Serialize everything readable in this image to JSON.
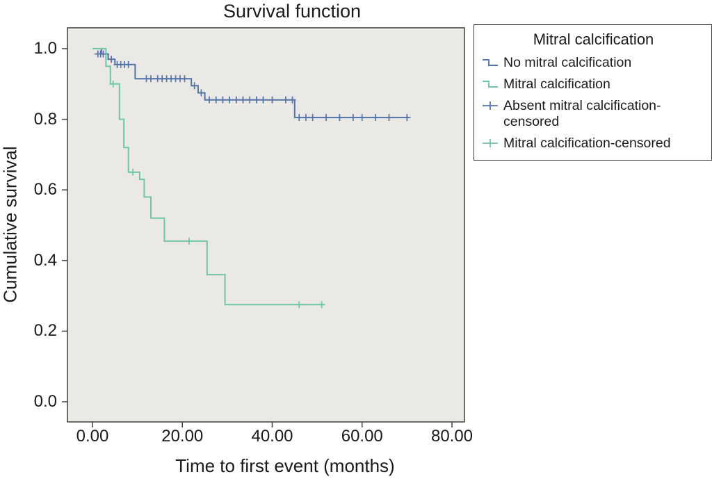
{
  "chart": {
    "title": "Survival function",
    "ylabel": "Cumulative survival",
    "xlabel": "Time to first event (months)"
  },
  "legend": {
    "title": "Mitral calcification",
    "items": [
      {
        "label": "No mitral calcification",
        "symbol": "step-line",
        "color": "#5574a7"
      },
      {
        "label": "Mitral calcification",
        "symbol": "step-line",
        "color": "#70c6a2"
      },
      {
        "label": "Absent mitral calcification-censored",
        "symbol": "censor-plus",
        "color": "#5574a7"
      },
      {
        "label": "Mitral calcification-censored",
        "symbol": "censor-plus",
        "color": "#70c6a2"
      }
    ]
  },
  "chart_data": {
    "type": "line",
    "subtype": "kaplan-meier-step",
    "title": "Survival function",
    "xlabel": "Time to first event (months)",
    "ylabel": "Cumulative survival",
    "xlim": [
      0,
      80
    ],
    "ylim": [
      0,
      1.0
    ],
    "xticks": [
      "0.00",
      "20.00",
      "40.00",
      "60.00",
      "80.00"
    ],
    "yticks": [
      "0.0",
      "0.2",
      "0.4",
      "0.6",
      "0.8",
      "1.0"
    ],
    "grid": false,
    "legend_position": "upper-right",
    "plot_bg": "#eae9e6",
    "series": [
      {
        "name": "No mitral calcification",
        "color": "#5574a7",
        "steps": [
          [
            0,
            1.0
          ],
          [
            2,
            0.985
          ],
          [
            3.5,
            0.97
          ],
          [
            5,
            0.955
          ],
          [
            9.5,
            0.915
          ],
          [
            22,
            0.895
          ],
          [
            23.5,
            0.875
          ],
          [
            25,
            0.855
          ],
          [
            45,
            0.805
          ]
        ],
        "end": 70.5,
        "censored": [
          [
            1.2,
            0.985
          ],
          [
            1.8,
            0.985
          ],
          [
            2.4,
            0.985
          ],
          [
            4.2,
            0.97
          ],
          [
            5.5,
            0.955
          ],
          [
            6.3,
            0.955
          ],
          [
            7.1,
            0.955
          ],
          [
            8,
            0.955
          ],
          [
            12,
            0.915
          ],
          [
            13,
            0.915
          ],
          [
            14.5,
            0.915
          ],
          [
            15.5,
            0.915
          ],
          [
            16.5,
            0.915
          ],
          [
            17.5,
            0.915
          ],
          [
            18.5,
            0.915
          ],
          [
            19.5,
            0.915
          ],
          [
            20.5,
            0.915
          ],
          [
            22.7,
            0.895
          ],
          [
            24.2,
            0.875
          ],
          [
            26,
            0.855
          ],
          [
            27.5,
            0.855
          ],
          [
            29,
            0.855
          ],
          [
            30.5,
            0.855
          ],
          [
            32,
            0.855
          ],
          [
            33.5,
            0.855
          ],
          [
            35,
            0.855
          ],
          [
            36.5,
            0.855
          ],
          [
            38,
            0.855
          ],
          [
            40,
            0.855
          ],
          [
            43,
            0.855
          ],
          [
            44.5,
            0.855
          ],
          [
            46,
            0.805
          ],
          [
            47.5,
            0.805
          ],
          [
            49,
            0.805
          ],
          [
            52,
            0.805
          ],
          [
            55,
            0.805
          ],
          [
            58,
            0.805
          ],
          [
            60,
            0.805
          ],
          [
            63,
            0.805
          ],
          [
            66,
            0.805
          ],
          [
            70,
            0.805
          ]
        ]
      },
      {
        "name": "Mitral calcification",
        "color": "#70c6a2",
        "steps": [
          [
            0,
            1.0
          ],
          [
            3,
            0.95
          ],
          [
            4,
            0.9
          ],
          [
            6,
            0.8
          ],
          [
            7,
            0.72
          ],
          [
            8,
            0.65
          ],
          [
            10.5,
            0.63
          ],
          [
            11.5,
            0.58
          ],
          [
            13,
            0.52
          ],
          [
            16,
            0.455
          ],
          [
            25.5,
            0.36
          ],
          [
            29.5,
            0.275
          ]
        ],
        "end": 51.5,
        "censored": [
          [
            4.6,
            0.9
          ],
          [
            9,
            0.65
          ],
          [
            21.5,
            0.455
          ],
          [
            46,
            0.275
          ],
          [
            51,
            0.275
          ]
        ]
      }
    ]
  }
}
